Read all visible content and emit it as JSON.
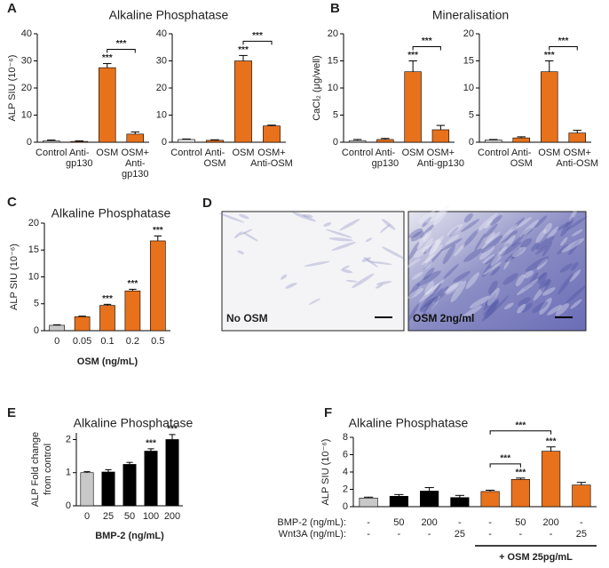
{
  "chart_data": [
    {
      "type": "bar",
      "panel": "A",
      "title": "Alkaline Phosphatase",
      "ylabel": "ALP  SIU (10⁻⁶)",
      "categories": [
        [
          "Control"
        ],
        [
          "Anti-",
          "gp130"
        ],
        [
          "OSM"
        ],
        [
          "OSM+",
          "Anti-",
          "gp130"
        ]
      ],
      "values": [
        0.5,
        0.3,
        27.5,
        3
      ],
      "errors": [
        0.3,
        0.2,
        1.5,
        0.8
      ],
      "colors": [
        "#d9d9d9",
        "#e8711c",
        "#e8711c",
        "#e8711c"
      ],
      "significance": [
        null,
        null,
        "***",
        null
      ],
      "comparisons": [
        {
          "categories": [
            2,
            3
          ],
          "label": "***"
        }
      ],
      "ylim": [
        0,
        40
      ],
      "yticks": [
        0,
        10,
        20,
        30,
        40
      ]
    },
    {
      "type": "bar",
      "categories": [
        [
          "Control"
        ],
        [
          "Anti-",
          "OSM"
        ],
        [
          "OSM"
        ],
        [
          "OSM+",
          "Anti-OSM"
        ]
      ],
      "values": [
        1,
        0.7,
        30,
        6
      ],
      "errors": [
        0.2,
        0.2,
        2,
        0.3
      ],
      "colors": [
        "#e6e6e6",
        "#e8711c",
        "#e8711c",
        "#e8711c"
      ],
      "significance": [
        null,
        null,
        "***",
        null
      ],
      "comparisons": [
        {
          "categories": [
            2,
            3
          ],
          "label": "***"
        }
      ],
      "ylim": [
        0,
        40
      ],
      "yticks": [
        0,
        10,
        20,
        30,
        40
      ]
    },
    {
      "type": "bar",
      "panel": "B",
      "title": "Mineralisation",
      "ylabel": "CaCl₂ (μg/well)",
      "categories": [
        [
          "Control"
        ],
        [
          "Anti-",
          "gp130"
        ],
        [
          "OSM"
        ],
        [
          "OSM+",
          "Anti-gp130"
        ]
      ],
      "values": [
        0.3,
        0.5,
        13,
        2.3
      ],
      "errors": [
        0.2,
        0.2,
        2,
        0.8
      ],
      "colors": [
        "#d9d9d9",
        "#e8711c",
        "#e8711c",
        "#e8711c"
      ],
      "significance": [
        null,
        null,
        "***",
        null
      ],
      "comparisons": [
        {
          "categories": [
            2,
            3
          ],
          "label": "***"
        }
      ],
      "ylim": [
        0,
        20
      ],
      "yticks": [
        0,
        5,
        10,
        15,
        20
      ]
    },
    {
      "type": "bar",
      "categories": [
        [
          "Control"
        ],
        [
          "Anti-",
          "OSM"
        ],
        [
          "OSM"
        ],
        [
          "OSM+",
          "Anti-OSM"
        ]
      ],
      "values": [
        0.4,
        0.8,
        13,
        1.7
      ],
      "errors": [
        0.1,
        0.2,
        2,
        0.5
      ],
      "colors": [
        "#d9d9d9",
        "#e8711c",
        "#e8711c",
        "#e8711c"
      ],
      "significance": [
        null,
        null,
        "***",
        null
      ],
      "comparisons": [
        {
          "categories": [
            2,
            3
          ],
          "label": "***"
        }
      ],
      "ylim": [
        0,
        20
      ],
      "yticks": [
        0,
        5,
        10,
        15,
        20
      ]
    },
    {
      "type": "bar",
      "panel": "C",
      "title": "Alkaline Phosphatase",
      "ylabel": "ALP  SIU (10⁻⁶)",
      "xlabel": "OSM (ng/mL)",
      "categories": [
        "0",
        "0.05",
        "0.1",
        "0.2",
        "0.5"
      ],
      "values": [
        1,
        2.6,
        4.7,
        7.4,
        16.7
      ],
      "errors": [
        0.1,
        0.1,
        0.2,
        0.3,
        0.9
      ],
      "colors": [
        "#c8c8c8",
        "#e8711c",
        "#e8711c",
        "#e8711c",
        "#e8711c"
      ],
      "significance": [
        null,
        null,
        "***",
        "***",
        "***"
      ],
      "ylim": [
        0,
        20
      ],
      "yticks": [
        0,
        5,
        10,
        15,
        20
      ]
    },
    {
      "type": "bar",
      "panel": "E",
      "title": "Alkaline Phosphatase",
      "ylabel": [
        "ALP Fold change",
        "from control"
      ],
      "xlabel": "BMP-2 (ng/mL)",
      "categories": [
        "0",
        "25",
        "50",
        "100",
        "200"
      ],
      "values": [
        1,
        1.02,
        1.25,
        1.65,
        2.0
      ],
      "errors": [
        0.03,
        0.07,
        0.06,
        0.07,
        0.15
      ],
      "colors": [
        "#c8c8c8",
        "#000000",
        "#000000",
        "#000000",
        "#000000"
      ],
      "significance": [
        null,
        null,
        null,
        "***",
        "***"
      ],
      "ylim": [
        0,
        2.2
      ],
      "yticks": [
        0,
        1,
        2
      ]
    },
    {
      "type": "bar",
      "panel": "F",
      "title": "Alkaline Phosphatase",
      "ylabel": "ALP SIU (10⁻⁶)",
      "conditions": [
        {
          "label": "BMP-2 (ng/mL):",
          "values": [
            "-",
            "50",
            "200",
            "-",
            "-",
            "50",
            "200",
            "-"
          ]
        },
        {
          "label": "Wnt3A (ng/mL):",
          "values": [
            "-",
            "-",
            "-",
            "25",
            "-",
            "-",
            "-",
            "25"
          ]
        }
      ],
      "group_label": "+ OSM 25pg/mL",
      "group": [
        4,
        7
      ],
      "values": [
        1.0,
        1.2,
        1.8,
        1.05,
        1.75,
        3.15,
        6.4,
        2.5
      ],
      "errors": [
        0.1,
        0.2,
        0.4,
        0.25,
        0.15,
        0.15,
        0.5,
        0.3
      ],
      "colors": [
        "#c8c8c8",
        "#000000",
        "#000000",
        "#000000",
        "#e8711c",
        "#e8711c",
        "#e8711c",
        "#e8711c"
      ],
      "significance": [
        null,
        null,
        null,
        null,
        null,
        "***",
        "***",
        null
      ],
      "comparisons": [
        {
          "categories": [
            4,
            5
          ],
          "label": "***"
        },
        {
          "categories": [
            4,
            6
          ],
          "label": "***"
        }
      ],
      "ylim": [
        0,
        8
      ],
      "yticks": [
        0,
        2,
        4,
        6,
        8
      ]
    }
  ],
  "image_panel": {
    "panel": "D",
    "labels": [
      "No OSM",
      "OSM 2ng/ml"
    ]
  }
}
